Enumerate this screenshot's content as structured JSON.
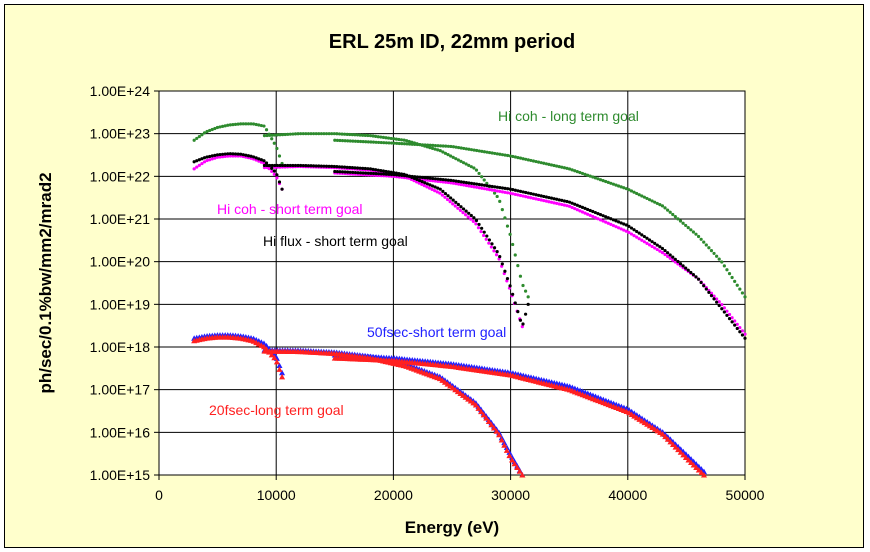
{
  "chart_data": {
    "type": "scatter",
    "title": "ERL 25m ID, 22mm period",
    "xlabel": "Energy (eV)",
    "ylabel": "ph/sec/0.1%bw/mm2/mrad2",
    "xlim": [
      0,
      50000
    ],
    "ylim_log10": [
      15,
      24
    ],
    "y_scale": "log",
    "grid": true,
    "x_ticks": [
      "0",
      "10000",
      "20000",
      "30000",
      "40000",
      "50000"
    ],
    "y_ticks": [
      "1.00E+15",
      "1.00E+16",
      "1.00E+17",
      "1.00E+18",
      "1.00E+19",
      "1.00E+20",
      "1.00E+21",
      "1.00E+22",
      "1.00E+23",
      "1.00E+24"
    ],
    "annotations": [
      {
        "text": "Hi coh - long term goal",
        "color": "#2e8b2e"
      },
      {
        "text": "Hi coh - short term goal",
        "color": "#ff00ff"
      },
      {
        "text": "Hi flux - short term goal",
        "color": "#000000"
      },
      {
        "text": "50fsec-short term goal",
        "color": "#2020ff"
      },
      {
        "text": "20fsec-long term goal",
        "color": "#ff2020"
      }
    ],
    "series": [
      {
        "color": "#2e8b2e",
        "marker": "dot",
        "curves": [
          {
            "x": [
              3000,
              4000,
              5000,
              6000,
              7000,
              8000,
              9000,
              10000,
              10500
            ],
            "y": [
              7e+22,
              1.1e+23,
              1.4e+23,
              1.6e+23,
              1.7e+23,
              1.7e+23,
              1.5e+23,
              5e+22,
              2e+22
            ]
          },
          {
            "x": [
              9000,
              12000,
              15000,
              18000,
              21000,
              24000,
              27000,
              29000,
              30000,
              31000,
              31500
            ],
            "y": [
              9e+22,
              1e+23,
              1e+23,
              9e+22,
              7e+22,
              4e+22,
              1.5e+22,
              3e+21,
              4e+20,
              3e+19,
              1.5e+19
            ]
          },
          {
            "x": [
              15000,
              20000,
              25000,
              30000,
              35000,
              40000,
              43000,
              46000,
              48000,
              50000
            ],
            "y": [
              7e+22,
              6e+22,
              5e+22,
              3e+22,
              1.5e+22,
              5e+21,
              2e+21,
              4e+20,
              1e+20,
              1.5e+19
            ]
          }
        ]
      },
      {
        "color": "#ff00ff",
        "marker": "dot",
        "curves": [
          {
            "x": [
              3000,
              4000,
              5000,
              6000,
              7000,
              8000,
              9000,
              10000,
              10500
            ],
            "y": [
              1.5e+22,
              2.3e+22,
              2.8e+22,
              3e+22,
              3e+22,
              2.6e+22,
              2e+22,
              1e+22,
              5e+21
            ]
          },
          {
            "x": [
              9000,
              12000,
              15000,
              18000,
              21000,
              24000,
              27000,
              29000,
              30000,
              31000
            ],
            "y": [
              1.6e+22,
              1.7e+22,
              1.6e+22,
              1.4e+22,
              1e+22,
              4e+21,
              8e+20,
              1.2e+20,
              2e+19,
              3e+18
            ]
          },
          {
            "x": [
              15000,
              20000,
              25000,
              30000,
              35000,
              40000,
              43000,
              46000,
              48000,
              50000
            ],
            "y": [
              1.2e+22,
              1e+22,
              7e+21,
              4e+21,
              2e+21,
              5e+20,
              1.6e+20,
              4e+19,
              1e+19,
              2e+18
            ]
          }
        ]
      },
      {
        "color": "#000000",
        "marker": "dot",
        "curves": [
          {
            "x": [
              3000,
              4000,
              5000,
              6000,
              7000,
              8000,
              9000,
              10000,
              10500
            ],
            "y": [
              2.2e+22,
              2.8e+22,
              3.2e+22,
              3.4e+22,
              3.3e+22,
              2.9e+22,
              2.3e+22,
              1.2e+22,
              5e+21
            ]
          },
          {
            "x": [
              9000,
              12000,
              15000,
              18000,
              21000,
              24000,
              27000,
              29000,
              30000,
              31000,
              31500
            ],
            "y": [
              1.8e+22,
              1.8e+22,
              1.7e+22,
              1.5e+22,
              1.1e+22,
              5e+21,
              1e+21,
              1.5e+20,
              2.5e+19,
              3e+18,
              1e+19
            ]
          },
          {
            "x": [
              15000,
              20000,
              25000,
              30000,
              35000,
              40000,
              43000,
              46000,
              48000,
              50000
            ],
            "y": [
              1.3e+22,
              1.1e+22,
              8e+21,
              5e+21,
              2.5e+21,
              7e+20,
              2e+20,
              4e+19,
              8e+18,
              1.6e+18
            ]
          }
        ]
      },
      {
        "color": "#2020ff",
        "marker": "triangle",
        "curves": [
          {
            "x": [
              3000,
              4000,
              5000,
              6000,
              7000,
              8000,
              9000,
              10000,
              10500
            ],
            "y": [
              1.6e+18,
              1.8e+18,
              1.9e+18,
              1.9e+18,
              1.8e+18,
              1.6e+18,
              1.2e+18,
              6e+17,
              2.5e+17
            ]
          },
          {
            "x": [
              9000,
              12000,
              15000,
              18000,
              21000,
              24000,
              27000,
              29000,
              30000,
              31000
            ],
            "y": [
              8.5e+17,
              8.3e+17,
              7.5e+17,
              6e+17,
              4e+17,
              2e+17,
              5e+16,
              1e+16,
              3000000000000000.0,
              1000000000000000.0
            ]
          },
          {
            "x": [
              15000,
              20000,
              25000,
              30000,
              35000,
              40000,
              43000,
              45000,
              46500
            ],
            "y": [
              6.5e+17,
              5.5e+17,
              4e+17,
              2.5e+17,
              1.2e+17,
              3.5e+16,
              1e+16,
              3000000000000000.0,
              1200000000000000.0
            ]
          }
        ]
      },
      {
        "color": "#ff2020",
        "marker": "triangle",
        "curves": [
          {
            "x": [
              3000,
              4000,
              5000,
              6000,
              7000,
              8000,
              9000,
              10000,
              10500
            ],
            "y": [
              1.4e+18,
              1.6e+18,
              1.7e+18,
              1.7e+18,
              1.6e+18,
              1.4e+18,
              1e+18,
              5e+17,
              2e+17
            ]
          },
          {
            "x": [
              9000,
              12000,
              15000,
              18000,
              21000,
              24000,
              27000,
              29000,
              30000,
              31000
            ],
            "y": [
              8e+17,
              7.8e+17,
              7e+17,
              5.5e+17,
              3.6e+17,
              1.8e+17,
              4.5e+16,
              9000000000000000.0,
              2500000000000000.0,
              1000000000000000.0
            ]
          },
          {
            "x": [
              15000,
              20000,
              25000,
              30000,
              35000,
              40000,
              43000,
              45000,
              46500
            ],
            "y": [
              5.5e+17,
              4.8e+17,
              3.5e+17,
              2.2e+17,
              1e+17,
              3e+16,
              9000000000000000.0,
              2500000000000000.0,
              1000000000000000.0
            ]
          }
        ]
      }
    ]
  }
}
